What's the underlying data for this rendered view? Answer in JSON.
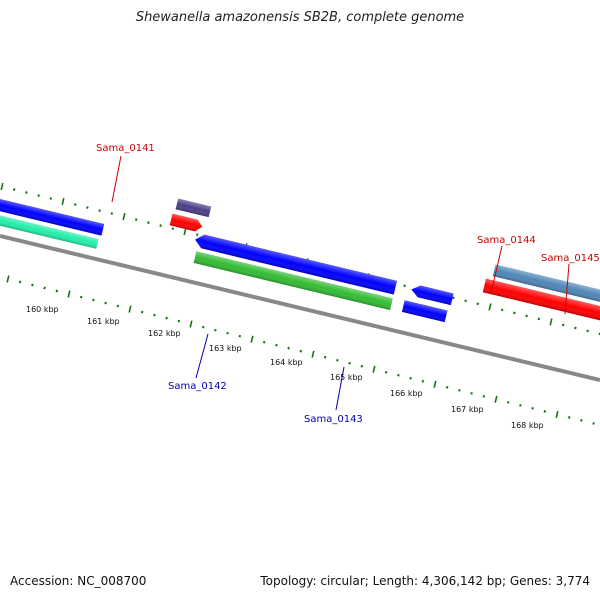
{
  "title": "Shewanella amazonensis SB2B, complete genome",
  "accession": "Accession: NC_008700",
  "summary": "Topology: circular; Length: 4,306,142 bp; Genes: 3,774",
  "ticks": [
    "160 kbp",
    "161 kbp",
    "162 kbp",
    "163 kbp",
    "164 kbp",
    "165 kbp",
    "166 kbp",
    "167 kbp",
    "168 kbp"
  ],
  "labels": {
    "sama_0141": "Sama_0141",
    "sama_0142": "Sama_0142",
    "sama_0143": "Sama_0143",
    "sama_0144": "Sama_0144",
    "sama_0145": "Sama_0145"
  },
  "colors": {
    "forward_gene": "#ff0000",
    "reverse_gene": "#0000ff",
    "forward_label": "#cc0000",
    "reverse_label": "#0000aa",
    "cds_green": "#33bb33",
    "cds_teal": "#22eeaa",
    "cds_steel": "#4f86b8",
    "cds_indigo": "#4a3f88",
    "cds_magenta": "#ff1493",
    "tick_green": "#117711",
    "backbone": "#888888"
  }
}
